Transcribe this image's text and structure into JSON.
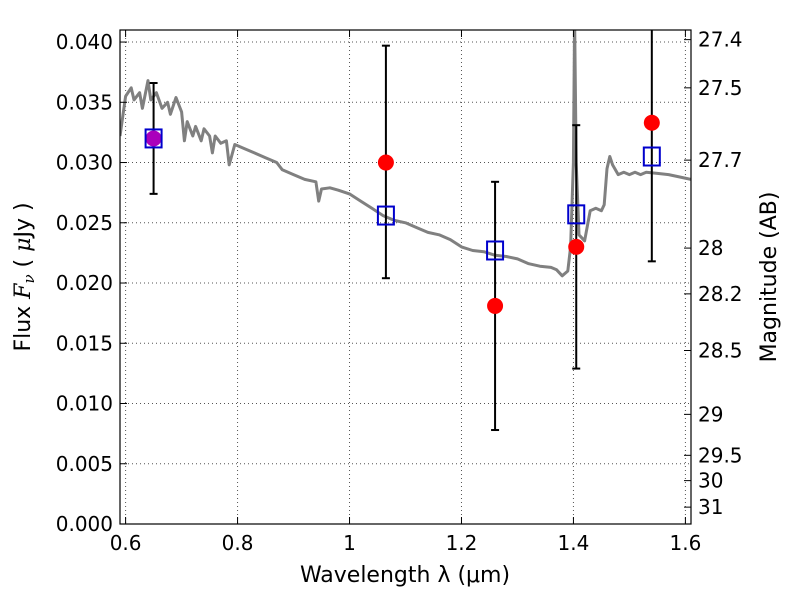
{
  "chart_data": {
    "type": "scatter",
    "xlabel": "Wavelength  λ (μm)",
    "ylabel_left": "Flux  F_ν  ( μJy )",
    "ylabel_right": "Magnitude (AB)",
    "xlim": [
      0.59,
      1.61
    ],
    "ylim": [
      0.0,
      0.041
    ],
    "grid": true,
    "x_ticks": [
      {
        "value": 0.6,
        "label": "0.6"
      },
      {
        "value": 0.8,
        "label": "0.8"
      },
      {
        "value": 1.0,
        "label": "1"
      },
      {
        "value": 1.2,
        "label": "1.2"
      },
      {
        "value": 1.4,
        "label": "1.4"
      },
      {
        "value": 1.6,
        "label": "1.6"
      }
    ],
    "y_ticks": [
      {
        "value": 0.0,
        "label": "0.000"
      },
      {
        "value": 0.005,
        "label": "0.005"
      },
      {
        "value": 0.01,
        "label": "0.010"
      },
      {
        "value": 0.015,
        "label": "0.015"
      },
      {
        "value": 0.02,
        "label": "0.020"
      },
      {
        "value": 0.025,
        "label": "0.025"
      },
      {
        "value": 0.03,
        "label": "0.030"
      },
      {
        "value": 0.035,
        "label": "0.035"
      },
      {
        "value": 0.04,
        "label": "0.040"
      }
    ],
    "right_ticks": [
      {
        "label": "27.4",
        "flux": 0.0402
      },
      {
        "label": "27.5",
        "flux": 0.0362
      },
      {
        "label": "27.7",
        "flux": 0.0302
      },
      {
        "label": "28",
        "flux": 0.0229
      },
      {
        "label": "28.2",
        "flux": 0.0191
      },
      {
        "label": "28.5",
        "flux": 0.0144
      },
      {
        "label": "29",
        "flux": 0.0091
      },
      {
        "label": "29.5",
        "flux": 0.0057
      },
      {
        "label": "30",
        "flux": 0.0036
      },
      {
        "label": "31",
        "flux": 0.0014
      }
    ],
    "series": [
      {
        "style": "line",
        "color": "#808080",
        "points": [
          [
            0.59,
            0.0322
          ],
          [
            0.6,
            0.0355
          ],
          [
            0.61,
            0.0362
          ],
          [
            0.615,
            0.0352
          ],
          [
            0.625,
            0.0358
          ],
          [
            0.63,
            0.0345
          ],
          [
            0.64,
            0.0368
          ],
          [
            0.645,
            0.0352
          ],
          [
            0.655,
            0.0358
          ],
          [
            0.665,
            0.0345
          ],
          [
            0.675,
            0.035
          ],
          [
            0.68,
            0.034
          ],
          [
            0.69,
            0.0354
          ],
          [
            0.7,
            0.0342
          ],
          [
            0.705,
            0.0318
          ],
          [
            0.71,
            0.0334
          ],
          [
            0.72,
            0.0322
          ],
          [
            0.725,
            0.033
          ],
          [
            0.735,
            0.0318
          ],
          [
            0.74,
            0.0328
          ],
          [
            0.75,
            0.0322
          ],
          [
            0.755,
            0.0308
          ],
          [
            0.76,
            0.0322
          ],
          [
            0.77,
            0.0316
          ],
          [
            0.78,
            0.0318
          ],
          [
            0.785,
            0.0298
          ],
          [
            0.795,
            0.0315
          ],
          [
            0.81,
            0.0312
          ],
          [
            0.83,
            0.0308
          ],
          [
            0.85,
            0.0304
          ],
          [
            0.87,
            0.03
          ],
          [
            0.88,
            0.0294
          ],
          [
            0.9,
            0.029
          ],
          [
            0.92,
            0.0286
          ],
          [
            0.94,
            0.0284
          ],
          [
            0.945,
            0.0268
          ],
          [
            0.95,
            0.0278
          ],
          [
            0.965,
            0.0279
          ],
          [
            0.98,
            0.0277
          ],
          [
            1.0,
            0.0274
          ],
          [
            1.02,
            0.0268
          ],
          [
            1.04,
            0.0262
          ],
          [
            1.06,
            0.0256
          ],
          [
            1.08,
            0.0252
          ],
          [
            1.1,
            0.025
          ],
          [
            1.12,
            0.0246
          ],
          [
            1.14,
            0.0242
          ],
          [
            1.16,
            0.024
          ],
          [
            1.18,
            0.0236
          ],
          [
            1.2,
            0.023
          ],
          [
            1.22,
            0.0227
          ],
          [
            1.24,
            0.0226
          ],
          [
            1.26,
            0.0223
          ],
          [
            1.28,
            0.0222
          ],
          [
            1.3,
            0.022
          ],
          [
            1.32,
            0.0216
          ],
          [
            1.34,
            0.0214
          ],
          [
            1.36,
            0.0213
          ],
          [
            1.37,
            0.0211
          ],
          [
            1.38,
            0.0206
          ],
          [
            1.39,
            0.021
          ],
          [
            1.395,
            0.023
          ],
          [
            1.4,
            0.03
          ],
          [
            1.402,
            0.042
          ],
          [
            1.405,
            0.03
          ],
          [
            1.41,
            0.024
          ],
          [
            1.42,
            0.0235
          ],
          [
            1.43,
            0.026
          ],
          [
            1.44,
            0.0262
          ],
          [
            1.45,
            0.026
          ],
          [
            1.455,
            0.0265
          ],
          [
            1.46,
            0.0295
          ],
          [
            1.465,
            0.0305
          ],
          [
            1.47,
            0.0298
          ],
          [
            1.48,
            0.029
          ],
          [
            1.49,
            0.0292
          ],
          [
            1.5,
            0.029
          ],
          [
            1.51,
            0.0292
          ],
          [
            1.52,
            0.029
          ],
          [
            1.53,
            0.0292
          ],
          [
            1.55,
            0.0291
          ],
          [
            1.57,
            0.029
          ],
          [
            1.59,
            0.0288
          ],
          [
            1.61,
            0.0286
          ]
        ]
      },
      {
        "style": "errorbar",
        "color": "#000000",
        "points": [
          {
            "x": 0.65,
            "ylow": 0.0274,
            "yhigh": 0.0366
          },
          {
            "x": 1.065,
            "ylow": 0.0204,
            "yhigh": 0.0397
          },
          {
            "x": 1.26,
            "ylow": 0.0078,
            "yhigh": 0.0284
          },
          {
            "x": 1.405,
            "ylow": 0.0129,
            "yhigh": 0.0331
          },
          {
            "x": 1.54,
            "ylow": 0.0218,
            "yhigh": 0.0415
          }
        ]
      },
      {
        "style": "circle-markers",
        "color": "#ff0000",
        "points": [
          {
            "x": 0.65,
            "y": 0.032,
            "color": "#aa00bb"
          },
          {
            "x": 1.065,
            "y": 0.03
          },
          {
            "x": 1.26,
            "y": 0.0181
          },
          {
            "x": 1.405,
            "y": 0.023
          },
          {
            "x": 1.54,
            "y": 0.0333
          }
        ]
      },
      {
        "style": "square-markers",
        "color": "#0000cc",
        "points": [
          {
            "x": 0.65,
            "y": 0.032
          },
          {
            "x": 1.065,
            "y": 0.0256
          },
          {
            "x": 1.26,
            "y": 0.0227
          },
          {
            "x": 1.405,
            "y": 0.0257
          },
          {
            "x": 1.54,
            "y": 0.0305
          }
        ]
      }
    ]
  }
}
